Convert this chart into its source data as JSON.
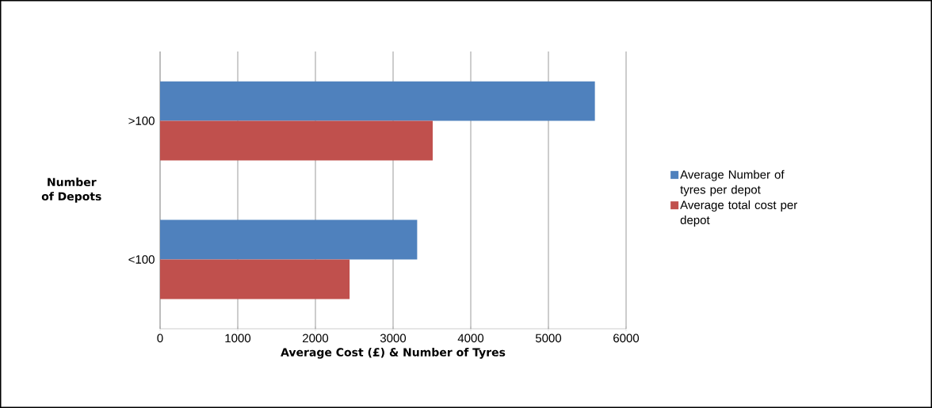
{
  "chart_data": {
    "type": "bar",
    "orientation": "horizontal",
    "xlabel": "Average Cost (£)  & Number of Tyres",
    "ylabel": "Number of Depots",
    "categories": [
      ">100",
      "<100"
    ],
    "series": [
      {
        "name": "Average Number of tyres per depot",
        "color": "#4f81bd",
        "values": [
          5600,
          3310
        ]
      },
      {
        "name": "Average total cost per depot",
        "color": "#c0504d",
        "values": [
          3510,
          2440
        ]
      }
    ],
    "xlim": [
      0,
      6000
    ],
    "xticks": [
      0,
      1000,
      2000,
      3000,
      4000,
      5000,
      6000
    ],
    "grid": "x",
    "legend": "right"
  }
}
